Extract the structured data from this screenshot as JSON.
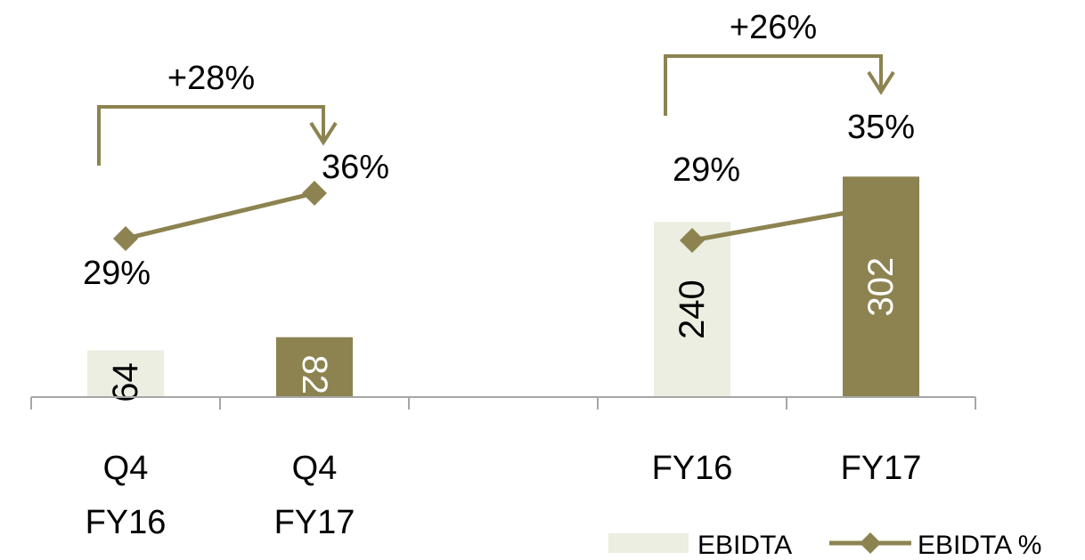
{
  "colors": {
    "bar_light": "#EBEEE0",
    "bar_dark": "#8C8350",
    "line": "#8C8350",
    "axis": "#A6A6A6",
    "text": "#000000",
    "bar_label_dark": "#FFFFFF",
    "bar_label_light": "#000000"
  },
  "chart_data": {
    "type": "bar",
    "categories": [
      [
        "Q4",
        "FY16"
      ],
      [
        "Q4",
        "FY17"
      ],
      [],
      [
        "FY16"
      ],
      [
        "FY17"
      ]
    ],
    "series": [
      {
        "name": "EBIDTA",
        "type": "bar",
        "values": [
          64,
          82,
          null,
          240,
          302
        ],
        "bar_styles": [
          "light",
          "dark",
          null,
          "light",
          "dark"
        ]
      },
      {
        "name": "EBIDTA %",
        "type": "line",
        "marker": "diamond",
        "values": [
          29,
          36,
          null,
          29,
          35
        ],
        "labels": [
          "29%",
          "36%",
          null,
          "29%",
          "35%"
        ]
      }
    ],
    "annotations": [
      {
        "label": "+28%",
        "from_category": 0,
        "to_category": 1
      },
      {
        "label": "+26%",
        "from_category": 3,
        "to_category": 4
      }
    ],
    "legend": {
      "position": "bottom-right",
      "items": [
        {
          "label": "EBIDTA",
          "kind": "bar"
        },
        {
          "label": "EBIDTA %",
          "kind": "line-diamond"
        }
      ]
    },
    "grid": false
  }
}
